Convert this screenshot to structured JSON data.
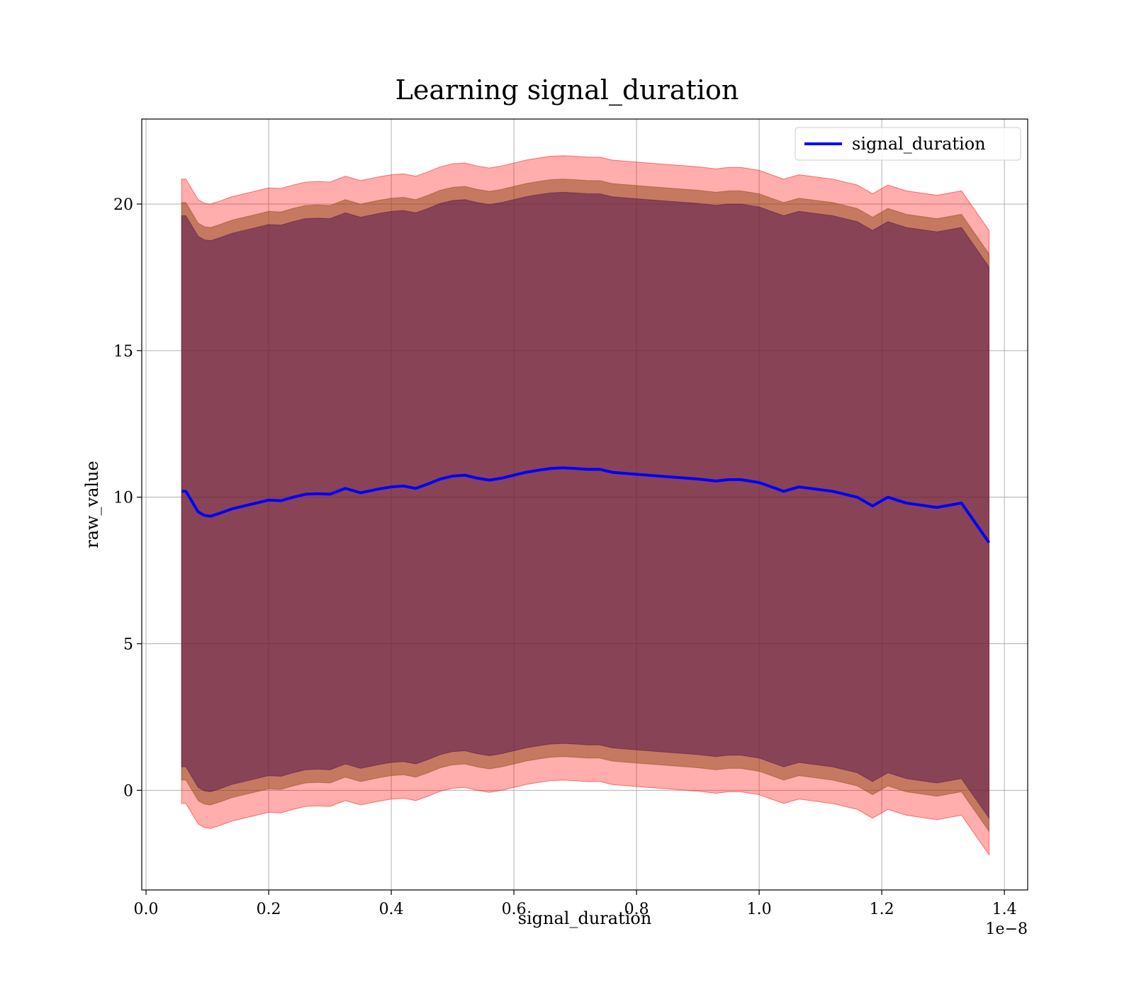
{
  "chart_data": {
    "type": "area",
    "title": "Learning signal_duration",
    "xlabel": "signal_duration",
    "ylabel": "raw_value",
    "x_offset_text": "1e−8",
    "x_scale": 1e-08,
    "xlim": [
      -7e-11,
      1.438e-08
    ],
    "ylim": [
      -3.4,
      22.9
    ],
    "x_ticks": [
      0.0,
      0.2,
      0.4,
      0.6,
      0.8,
      1.0,
      1.2,
      1.4
    ],
    "x_tick_labels": [
      "0.0",
      "0.2",
      "0.4",
      "0.6",
      "0.8",
      "1.0",
      "1.2",
      "1.4"
    ],
    "y_ticks": [
      0,
      5,
      10,
      15,
      20
    ],
    "y_tick_labels": [
      "0",
      "5",
      "10",
      "15",
      "20"
    ],
    "grid": true,
    "legend": {
      "position": "top-right",
      "entries": [
        "signal_duration"
      ]
    },
    "colors": {
      "line": "#0000ff",
      "outer_band": "#ff0000",
      "middle_band": "#8b4513",
      "inner_band": "#4b0f4b"
    },
    "x": [
      5.8e-10,
      6.5e-10,
      7.5e-10,
      8.5e-10,
      9.5e-10,
      1.05e-09,
      1.2e-09,
      1.4e-09,
      1.6e-09,
      1.8e-09,
      2e-09,
      2.2e-09,
      2.4e-09,
      2.6e-09,
      2.8e-09,
      3e-09,
      3.25e-09,
      3.5e-09,
      3.8e-09,
      4e-09,
      4.2e-09,
      4.4e-09,
      4.6e-09,
      4.8e-09,
      5e-09,
      5.2e-09,
      5.4e-09,
      5.6e-09,
      5.8e-09,
      6e-09,
      6.2e-09,
      6.4e-09,
      6.6e-09,
      6.8e-09,
      7e-09,
      7.2e-09,
      7.4e-09,
      7.6e-09,
      8e-09,
      8.5e-09,
      9e-09,
      9.3e-09,
      9.5e-09,
      9.7e-09,
      1e-08,
      1.02e-08,
      1.04e-08,
      1.065e-08,
      1.12e-08,
      1.16e-08,
      1.185e-08,
      1.21e-08,
      1.24e-08,
      1.29e-08,
      1.33e-08,
      1.375e-08
    ],
    "series": [
      {
        "name": "signal_duration",
        "values": [
          10.2,
          10.2,
          9.85,
          9.5,
          9.38,
          9.35,
          9.45,
          9.6,
          9.7,
          9.8,
          9.9,
          9.88,
          10.0,
          10.1,
          10.12,
          10.1,
          10.3,
          10.15,
          10.28,
          10.35,
          10.38,
          10.3,
          10.45,
          10.62,
          10.72,
          10.75,
          10.65,
          10.58,
          10.65,
          10.75,
          10.85,
          10.92,
          10.98,
          11.0,
          10.98,
          10.95,
          10.95,
          10.85,
          10.78,
          10.7,
          10.62,
          10.55,
          10.6,
          10.6,
          10.5,
          10.35,
          10.2,
          10.35,
          10.2,
          10.0,
          9.7,
          10.0,
          9.8,
          9.65,
          9.8,
          8.45
        ]
      }
    ],
    "bands": [
      {
        "upper_minus_mean": 10.65,
        "lower_minus_mean": 10.65
      },
      {
        "upper_minus_mean": 9.85,
        "lower_minus_mean": 9.85
      },
      {
        "upper_minus_mean": 9.4,
        "lower_minus_mean": 9.4
      }
    ]
  }
}
